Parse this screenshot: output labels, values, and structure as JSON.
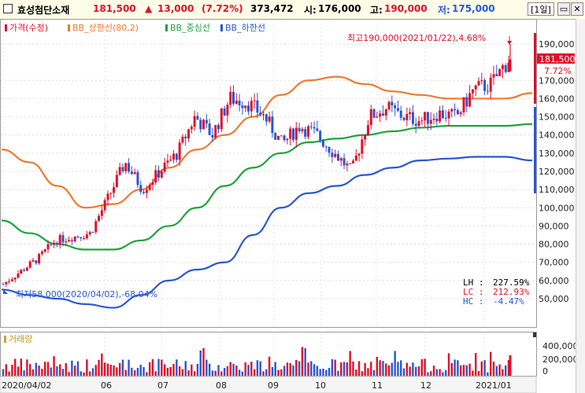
{
  "header": {
    "stock_name": "효성첨단소재",
    "price": "181,500",
    "change_arrow": "▲",
    "change": "13,000",
    "change_pct": "(7.72%)",
    "volume": "373,472",
    "open_label": "시:",
    "open": "176,000",
    "high_label": "고:",
    "high": "190,000",
    "low_label": "저:",
    "low": "175,000",
    "period": "[1일]"
  },
  "legend": {
    "items": [
      "가격(수정)",
      "BB_상한선(80,2)",
      "BB_중심선",
      "BB_하한선"
    ],
    "colors": [
      "#e0102a",
      "#ef7a2f",
      "#1ea33b",
      "#2a56d6"
    ]
  },
  "annotations": {
    "max": "최고190,000(2021/01/22),4.68%",
    "min": "최저58,000(2020/04/02),-68.04%"
  },
  "current_box": {
    "price": "181,500",
    "pct": "7.72%"
  },
  "stats": [
    {
      "label": "LH : ",
      "value": "227.59%",
      "color": "#000000"
    },
    {
      "label": "LC : ",
      "value": "212.93%",
      "color": "#e0102a"
    },
    {
      "label": "HC : ",
      "value": "-4.47%",
      "color": "#2a56d6"
    }
  ],
  "volume_panel": {
    "label": "거래량",
    "ticks": [
      "400,000",
      "200,000",
      "0"
    ]
  },
  "x_axis": [
    "2020/04/02",
    "06",
    "07",
    "08",
    "09",
    "10",
    "11",
    "12",
    "2021/01"
  ],
  "chart_data": {
    "type": "candlestick",
    "y_ticks": [
      50000,
      60000,
      70000,
      80000,
      90000,
      100000,
      110000,
      120000,
      130000,
      140000,
      150000,
      160000,
      170000,
      190000
    ],
    "y_tick_labels": [
      "50,000",
      "60,000",
      "70,000",
      "80,000",
      "90,000",
      "100,000",
      "110,000",
      "120,000",
      "130,000",
      "140,000",
      "150,000",
      "160,000",
      "170,000",
      "190,000"
    ],
    "price_close_approx": [
      58000,
      65000,
      72000,
      82000,
      84000,
      86000,
      105000,
      125000,
      110000,
      120000,
      130000,
      150000,
      140000,
      160000,
      158000,
      150000,
      135000,
      145000,
      140000,
      130000,
      120000,
      150000,
      155000,
      150000,
      148000,
      152000,
      150000,
      165000,
      168000,
      181500
    ],
    "series": [
      {
        "name": "BB_상한선(80,2)",
        "values": [
          132000,
          125000,
          112000,
          100000,
          102000,
          110000,
          122000,
          132000,
          140000,
          150000,
          162000,
          170000,
          172000,
          168000,
          164000,
          162000,
          160000,
          160000,
          160000,
          163000
        ]
      },
      {
        "name": "BB_중심선",
        "values": [
          93000,
          86000,
          80000,
          77000,
          77000,
          82000,
          90000,
          100000,
          112000,
          122000,
          130000,
          136000,
          138000,
          140000,
          142000,
          144000,
          145000,
          145000,
          145000,
          146000
        ]
      },
      {
        "name": "BB_하한선",
        "values": [
          55000,
          52000,
          50000,
          47000,
          45000,
          52000,
          60000,
          66000,
          70000,
          85000,
          100000,
          108000,
          112000,
          118000,
          122000,
          126000,
          127000,
          128000,
          128000,
          126000
        ]
      }
    ],
    "volume_ticks": [
      0,
      200000,
      400000
    ]
  }
}
